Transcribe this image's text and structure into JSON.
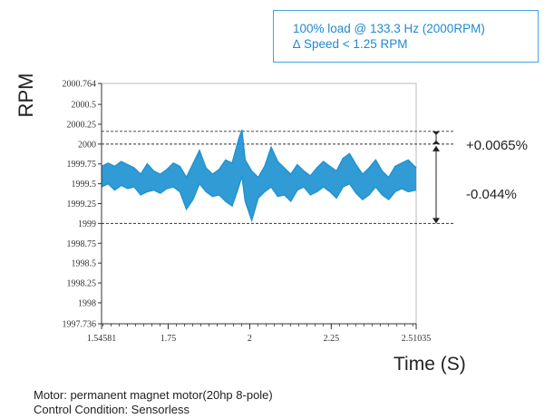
{
  "info_box": {
    "line1": "100% load @ 133.3 Hz (2000RPM)",
    "line2": "∆ Speed < 1.25 RPM",
    "border_color": "#4aa3d8",
    "text_color": "#1f8ad0"
  },
  "caption": {
    "line1": "Motor: permanent magnet motor(20hp 8-pole)",
    "line2": "Control Condition: Sensorless"
  },
  "chart_data": {
    "type": "line",
    "ylabel": "RPM",
    "xlabel": "Time (S)",
    "xlim": [
      1.54581,
      2.51035
    ],
    "ylim": [
      1997.736,
      2000.764
    ],
    "x_ticks": [
      {
        "v": 1.54581,
        "label": "1.54581"
      },
      {
        "v": 1.75,
        "label": "1.75"
      },
      {
        "v": 2.0,
        "label": "2"
      },
      {
        "v": 2.25,
        "label": "2.25"
      },
      {
        "v": 2.51035,
        "label": "2.51035"
      }
    ],
    "y_ticks": [
      {
        "v": 2000.764,
        "label": "2000.764"
      },
      {
        "v": 2000.5,
        "label": "2000.5"
      },
      {
        "v": 2000.25,
        "label": "2000.25"
      },
      {
        "v": 2000.0,
        "label": "2000"
      },
      {
        "v": 1999.75,
        "label": "1999.75"
      },
      {
        "v": 1999.5,
        "label": "1999.5"
      },
      {
        "v": 1999.25,
        "label": "1999.25"
      },
      {
        "v": 1999.0,
        "label": "1999"
      },
      {
        "v": 1998.75,
        "label": "1998.75"
      },
      {
        "v": 1998.5,
        "label": "1998.5"
      },
      {
        "v": 1998.25,
        "label": "1998.25"
      },
      {
        "v": 1998.0,
        "label": "1998"
      },
      {
        "v": 1997.736,
        "label": "1997.736"
      }
    ],
    "reference_lines": [
      {
        "y": 2000.16
      },
      {
        "y": 2000.0
      },
      {
        "y": 1999.0
      }
    ],
    "annotations": [
      {
        "text": "+0.0065%"
      },
      {
        "text": "-0.044%"
      }
    ],
    "series": [
      {
        "color": "#1f93d1",
        "x": [
          1.5458,
          1.566,
          1.586,
          1.606,
          1.626,
          1.646,
          1.666,
          1.686,
          1.706,
          1.726,
          1.746,
          1.766,
          1.786,
          1.806,
          1.826,
          1.846,
          1.866,
          1.886,
          1.906,
          1.926,
          1.946,
          1.966,
          1.976,
          1.986,
          2.006,
          2.026,
          2.046,
          2.066,
          2.086,
          2.106,
          2.126,
          2.146,
          2.166,
          2.186,
          2.206,
          2.226,
          2.246,
          2.266,
          2.286,
          2.306,
          2.326,
          2.346,
          2.366,
          2.386,
          2.406,
          2.426,
          2.446,
          2.466,
          2.486,
          2.5103
        ],
        "y_upper": [
          1999.72,
          1999.76,
          1999.72,
          1999.78,
          1999.74,
          1999.7,
          1999.62,
          1999.75,
          1999.66,
          1999.62,
          1999.68,
          1999.76,
          1999.72,
          1999.58,
          1999.75,
          1999.92,
          1999.7,
          1999.62,
          1999.68,
          1999.8,
          1999.76,
          2000.06,
          2000.18,
          1999.8,
          1999.66,
          1999.58,
          1999.72,
          1999.96,
          1999.78,
          1999.7,
          1999.62,
          1999.74,
          1999.66,
          1999.6,
          1999.7,
          1999.78,
          1999.72,
          1999.66,
          1999.82,
          1999.88,
          1999.74,
          1999.62,
          1999.7,
          1999.8,
          1999.66,
          1999.58,
          1999.72,
          1999.76,
          1999.8,
          1999.7
        ],
        "y_lower": [
          1999.46,
          1999.5,
          1999.42,
          1999.48,
          1999.44,
          1999.46,
          1999.36,
          1999.4,
          1999.42,
          1999.38,
          1999.44,
          1999.46,
          1999.4,
          1999.18,
          1999.3,
          1999.5,
          1999.4,
          1999.34,
          1999.36,
          1999.28,
          1999.22,
          1999.46,
          1999.6,
          1999.28,
          1999.04,
          1999.32,
          1999.4,
          1999.46,
          1999.34,
          1999.36,
          1999.28,
          1999.42,
          1999.46,
          1999.36,
          1999.4,
          1999.46,
          1999.4,
          1999.32,
          1999.46,
          1999.5,
          1999.38,
          1999.3,
          1999.36,
          1999.46,
          1999.36,
          1999.3,
          1999.4,
          1999.44,
          1999.4,
          1999.42
        ]
      }
    ]
  }
}
